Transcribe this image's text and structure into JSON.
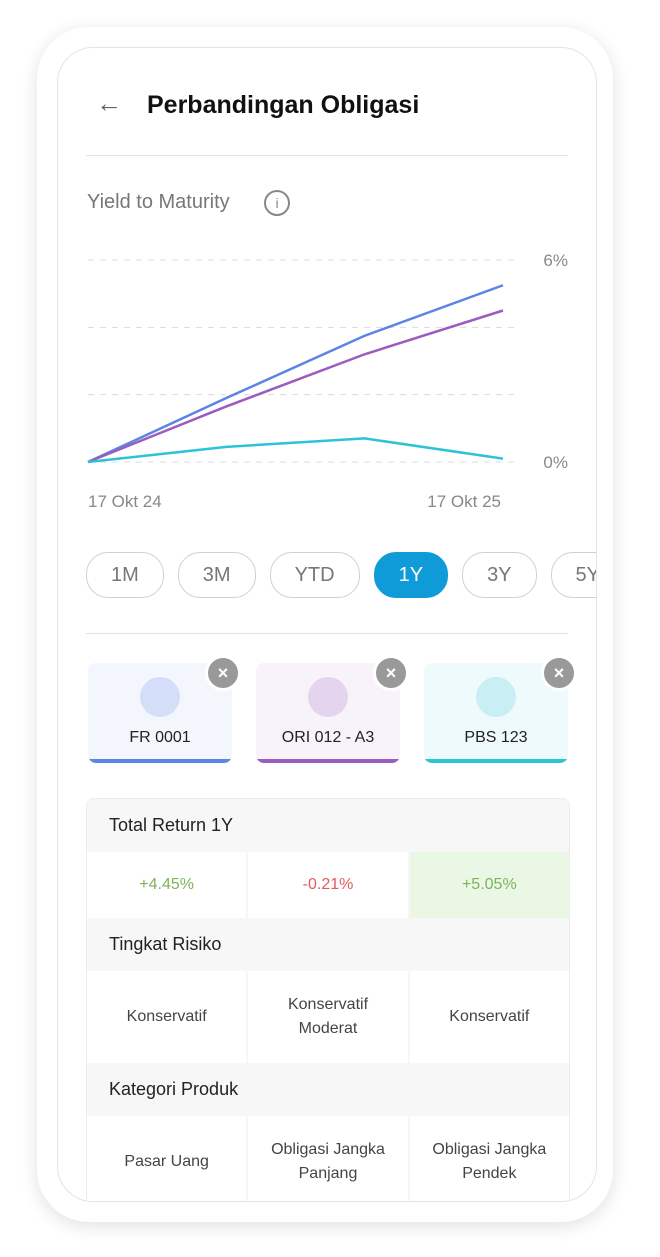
{
  "header": {
    "title": "Perbandingan Obligasi"
  },
  "chart_data": {
    "type": "line",
    "title": "Yield to Maturity",
    "categories": [
      "17 Okt 24",
      null,
      null,
      "17 Okt 25"
    ],
    "series": [
      {
        "color": "#5b84e6",
        "values": [
          0,
          1.9,
          3.75,
          5.25
        ]
      },
      {
        "color": "#9b5cbf",
        "values": [
          0,
          1.65,
          3.2,
          4.5
        ]
      },
      {
        "color": "#2cc3d6",
        "values": [
          0,
          0.45,
          0.7,
          0.1
        ]
      }
    ],
    "ylim": [
      0,
      6
    ],
    "yticks": [
      {
        "value": 6,
        "label": "6%"
      },
      {
        "value": 0,
        "label": "0%"
      }
    ],
    "grid_lines": [
      0,
      2,
      4,
      6
    ],
    "grid": true
  },
  "periods": {
    "options": [
      "1M",
      "3M",
      "YTD",
      "1Y",
      "3Y",
      "5Y"
    ],
    "selected_index": 3
  },
  "bonds": [
    {
      "name": "FR 0001",
      "color": "#5b84e6"
    },
    {
      "name": "ORI 012 - A3",
      "color": "#9b5cbf"
    },
    {
      "name": "PBS 123",
      "color": "#2cc3d6"
    }
  ],
  "table": {
    "sections": [
      {
        "title": "Total Return 1Y",
        "cells": [
          "+4.45%",
          "-0.21%",
          "+5.05%"
        ],
        "cell_colors": [
          "#7cb35b",
          "#e25b5b",
          "#7cb35b"
        ],
        "highlight_index": 2
      },
      {
        "title": "Tingkat Risiko",
        "cells": [
          "Konservatif",
          "Konservatif Moderat",
          "Konservatif"
        ]
      },
      {
        "title": "Kategori Produk",
        "cells": [
          "Pasar Uang",
          "Obligasi Jangka Panjang",
          "Obligasi Jangka Pendek"
        ]
      }
    ]
  }
}
